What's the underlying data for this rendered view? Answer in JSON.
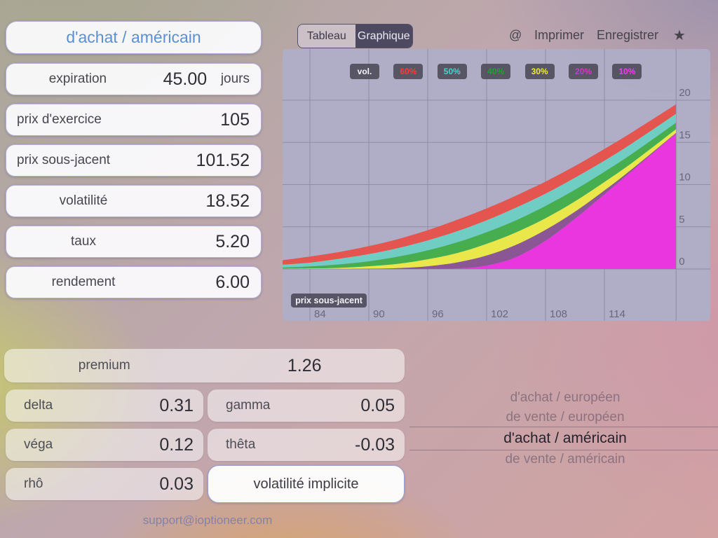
{
  "option_type_button": {
    "label": "d'achat / américain"
  },
  "inputs": [
    {
      "label": "expiration",
      "value": "45.00",
      "unit": "jours"
    },
    {
      "label": "prix d'exercice",
      "value": "105"
    },
    {
      "label": "prix sous-jacent",
      "value": "101.52"
    },
    {
      "label": "volatilité",
      "value": "18.52"
    },
    {
      "label": "taux",
      "value": "5.20"
    },
    {
      "label": "rendement",
      "value": "6.00"
    }
  ],
  "toolbar": {
    "tabs": [
      {
        "label": "Tableau",
        "active": false
      },
      {
        "label": "Graphique",
        "active": true
      }
    ],
    "at_label": "@",
    "print_label": "Imprimer",
    "save_label": "Enregistrer",
    "star_label": "★"
  },
  "results": {
    "premium_label": "premium",
    "premium_value": "1.26",
    "greeks": [
      {
        "label": "delta",
        "value": "0.31"
      },
      {
        "label": "gamma",
        "value": "0.05"
      },
      {
        "label": "véga",
        "value": "0.12"
      },
      {
        "label": "thêta",
        "value": "-0.03"
      },
      {
        "label": "rhô",
        "value": "0.03"
      }
    ],
    "implied_vol_button": "volatilité implicite"
  },
  "picker": {
    "options": [
      "d'achat / européen",
      "de vente / européen",
      "d'achat / américain",
      "de vente / américain"
    ],
    "selected_index": 2
  },
  "support_email": "support@ioptioneer.com",
  "chart_data": {
    "type": "area",
    "legend_title": "vol.",
    "x_axis_badge": "prix sous-jacent",
    "x_ticks": [
      84,
      90,
      96,
      102,
      108,
      114
    ],
    "y_ticks": [
      0,
      5,
      10,
      15,
      20
    ],
    "x_range": [
      81.2,
      121.3
    ],
    "ylim": [
      0,
      20
    ],
    "grid": true,
    "panel_color": "#afaec7",
    "gridline_color": "#8e8da5",
    "x": [
      81,
      84,
      87,
      90,
      93,
      96,
      99,
      102,
      105,
      108,
      111,
      114,
      117,
      121.3
    ],
    "series": [
      {
        "name": "60%",
        "color": "#e4554f",
        "legend_color": "#ff3b36",
        "values": [
          1.0,
          1.47,
          2.02,
          2.71,
          3.55,
          4.6,
          5.83,
          7.18,
          8.7,
          10.36,
          12.2,
          14.22,
          16.33,
          19.51
        ]
      },
      {
        "name": "50%",
        "color": "#70cdc4",
        "legend_color": "#45d6c9",
        "values": [
          0.49,
          0.75,
          1.21,
          1.76,
          2.48,
          3.39,
          4.47,
          5.77,
          7.26,
          8.92,
          10.81,
          12.83,
          15.02,
          18.38
        ]
      },
      {
        "name": "40%",
        "color": "#47ae4f",
        "legend_color": "#16a82e",
        "values": [
          0.16,
          0.31,
          0.55,
          0.91,
          1.47,
          2.21,
          3.16,
          4.36,
          5.77,
          7.47,
          9.39,
          11.52,
          13.79,
          17.34
        ]
      },
      {
        "name": "30%",
        "color": "#eae74b",
        "legend_color": "#f0ea3e",
        "values": [
          0.02,
          0.05,
          0.13,
          0.32,
          0.61,
          1.15,
          1.88,
          2.98,
          4.34,
          6.01,
          8.01,
          10.3,
          12.73,
          16.56
        ]
      },
      {
        "name": "20%",
        "color": "#8b5694",
        "legend_color": "#cc39cc",
        "values": [
          0.0,
          0.0,
          0.01,
          0.03,
          0.11,
          0.32,
          0.78,
          1.59,
          2.86,
          4.64,
          6.79,
          9.3,
          12.01,
          16.13
        ]
      },
      {
        "name": "10%",
        "color": "#e936de",
        "legend_color": "#f23cf2",
        "values": [
          0.0,
          0.0,
          0.0,
          0.0,
          0.0,
          0.01,
          0.06,
          0.4,
          1.4,
          3.34,
          5.94,
          8.84,
          11.8,
          16.07
        ]
      }
    ]
  }
}
